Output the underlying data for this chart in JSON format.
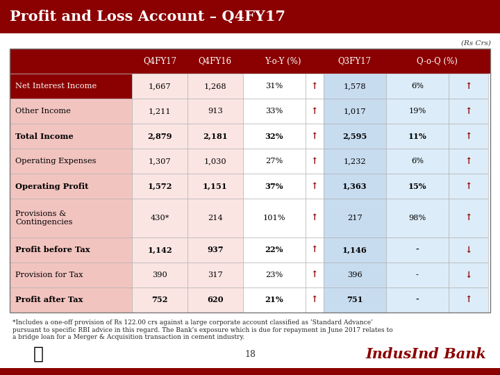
{
  "title": "Profit and Loss Account – Q4FY17",
  "subtitle": "(Rs Crs)",
  "rows": [
    {
      "label": "Net Interest Income",
      "bold": false,
      "label_bg": "dark_red",
      "q4fy17": "1,667",
      "q4fy16": "1,268",
      "yoy": "31%",
      "yoy_arrow": "↑",
      "q3fy17": "1,578",
      "qoq": "6%",
      "qoq_arrow": "↑",
      "qoq_down": false
    },
    {
      "label": "Other Income",
      "bold": false,
      "label_bg": "white",
      "q4fy17": "1,211",
      "q4fy16": "913",
      "yoy": "33%",
      "yoy_arrow": "↑",
      "q3fy17": "1,017",
      "qoq": "19%",
      "qoq_arrow": "↑",
      "qoq_down": false
    },
    {
      "label": "Total Income",
      "bold": true,
      "label_bg": "white",
      "q4fy17": "2,879",
      "q4fy16": "2,181",
      "yoy": "32%",
      "yoy_arrow": "↑",
      "q3fy17": "2,595",
      "qoq": "11%",
      "qoq_arrow": "↑",
      "qoq_down": false
    },
    {
      "label": "Operating Expenses",
      "bold": false,
      "label_bg": "white",
      "q4fy17": "1,307",
      "q4fy16": "1,030",
      "yoy": "27%",
      "yoy_arrow": "↑",
      "q3fy17": "1,232",
      "qoq": "6%",
      "qoq_arrow": "↑",
      "qoq_down": false
    },
    {
      "label": "Operating Profit",
      "bold": true,
      "label_bg": "white",
      "q4fy17": "1,572",
      "q4fy16": "1,151",
      "yoy": "37%",
      "yoy_arrow": "↑",
      "q3fy17": "1,363",
      "qoq": "15%",
      "qoq_arrow": "↑",
      "qoq_down": false
    },
    {
      "label": "Provisions &\nContingencies",
      "bold": false,
      "label_bg": "white",
      "q4fy17": "430*",
      "q4fy16": "214",
      "yoy": "101%",
      "yoy_arrow": "↑",
      "q3fy17": "217",
      "qoq": "98%",
      "qoq_arrow": "↑",
      "qoq_down": false
    },
    {
      "label": "Profit before Tax",
      "bold": true,
      "label_bg": "white",
      "q4fy17": "1,142",
      "q4fy16": "937",
      "yoy": "22%",
      "yoy_arrow": "↑",
      "q3fy17": "1,146",
      "qoq": "-",
      "qoq_arrow": "↓",
      "qoq_down": true
    },
    {
      "label": "Provision for Tax",
      "bold": false,
      "label_bg": "white",
      "q4fy17": "390",
      "q4fy16": "317",
      "yoy": "23%",
      "yoy_arrow": "↑",
      "q3fy17": "396",
      "qoq": "-",
      "qoq_arrow": "↓",
      "qoq_down": true
    },
    {
      "label": "Profit after Tax",
      "bold": true,
      "label_bg": "white",
      "q4fy17": "752",
      "q4fy16": "620",
      "yoy": "21%",
      "yoy_arrow": "↑",
      "q3fy17": "751",
      "qoq": "-",
      "qoq_arrow": "↑",
      "qoq_down": false
    }
  ],
  "footnote": "*Includes a one-off provision of Rs 122.00 crs against a large corporate account classified as ‘Standard Advance’\npursuant to specific RBI advice in this regard. The Bank’s exposure which is due for repayment in June 2017 relates to\na bridge loan for a Merger & Acquisition transaction in cement industry.",
  "page_number": "18",
  "title_bg": "#8B0000",
  "title_text": "#FFFFFF",
  "header_bg": "#8B0000",
  "header_text": "#FFFFFF",
  "label_pink_bg": "#F2C4C0",
  "data_pink_bg": "#FAE5E3",
  "label_blue_bg": "#C8DCF0",
  "data_blue_bg": "#DCEcF8",
  "white_bg": "#FFFFFF",
  "dark_red": "#8B0000",
  "border_color": "#AAAAAA",
  "text_color": "#000000",
  "footnote_color": "#222222",
  "brand_color": "#8B0000"
}
